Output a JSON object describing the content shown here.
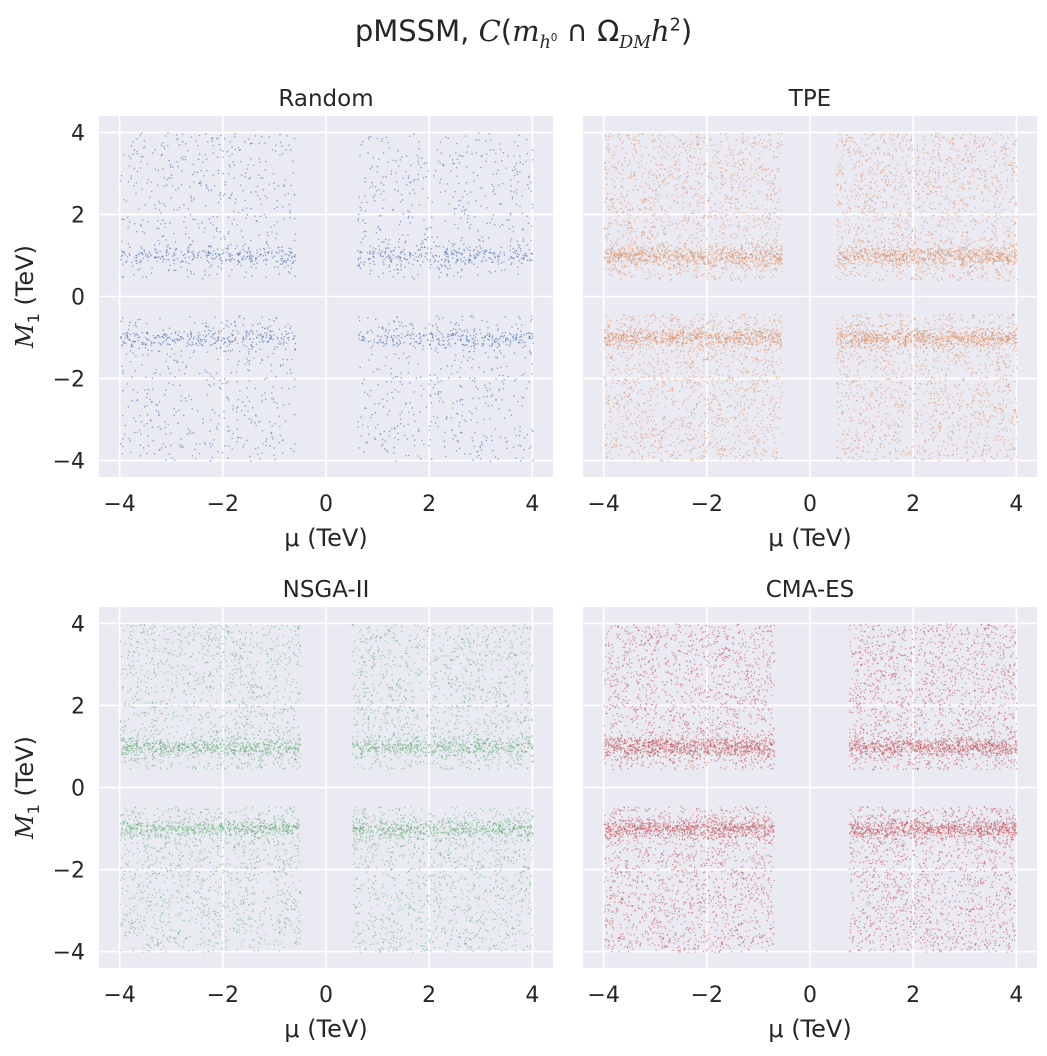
{
  "figure": {
    "suptitle_prefix": "pMSSM, ",
    "suptitle_math": {
      "C": "C",
      "open": "(",
      "m": "m",
      "m_sub": "h",
      "m_sub_sup": "0",
      "cap": " ∩ ",
      "omega": "Ω",
      "omega_sub": "DM",
      "h": "h",
      "h_sup": "2",
      "close": ")"
    }
  },
  "chart_data": [
    {
      "type": "scatter",
      "title": "Random",
      "xlabel": "μ (TeV)",
      "ylabel": "M1 (TeV)",
      "xlim": [
        -4.4,
        4.4
      ],
      "ylim": [
        -4.4,
        4.4
      ],
      "xticks": [
        -4,
        -2,
        0,
        2,
        4
      ],
      "yticks": [
        -4,
        -2,
        0,
        2,
        4
      ],
      "xtick_labels": [
        "−4",
        "−2",
        "0",
        "2",
        "4"
      ],
      "ytick_labels": [
        "−4",
        "−2",
        "0",
        "2",
        "4"
      ],
      "color": "#4c72b0",
      "grid": true,
      "regions": [
        {
          "x": [
            -4,
            -0.6
          ],
          "y": [
            0.45,
            4
          ],
          "density": 0.25,
          "band_y": 1.0
        },
        {
          "x": [
            0.6,
            4
          ],
          "y": [
            0.45,
            4
          ],
          "density": 0.25,
          "band_y": 1.0
        },
        {
          "x": [
            -4,
            -0.6
          ],
          "y": [
            -4,
            -0.45
          ],
          "density": 0.25,
          "band_y": -1.0
        },
        {
          "x": [
            0.6,
            4
          ],
          "y": [
            -4,
            -0.45
          ],
          "density": 0.25,
          "band_y": -1.0
        }
      ]
    },
    {
      "type": "scatter",
      "title": "TPE",
      "xlabel": "μ (TeV)",
      "ylabel": "",
      "xlim": [
        -4.4,
        4.4
      ],
      "ylim": [
        -4.4,
        4.4
      ],
      "xticks": [
        -4,
        -2,
        0,
        2,
        4
      ],
      "yticks": [
        -4,
        -2,
        0,
        2,
        4
      ],
      "xtick_labels": [
        "−4",
        "−2",
        "0",
        "2",
        "4"
      ],
      "ytick_labels": [],
      "color": "#dd8452",
      "grid": true,
      "regions": [
        {
          "x": [
            -4,
            -0.55
          ],
          "y": [
            0.4,
            4
          ],
          "density": 0.75,
          "band_y": 1.0
        },
        {
          "x": [
            0.5,
            4
          ],
          "y": [
            0.4,
            4
          ],
          "density": 0.75,
          "band_y": 1.0
        },
        {
          "x": [
            -4,
            -0.55
          ],
          "y": [
            -4,
            -0.4
          ],
          "density": 0.75,
          "band_y": -1.0
        },
        {
          "x": [
            0.5,
            4
          ],
          "y": [
            -4,
            -0.4
          ],
          "density": 0.75,
          "band_y": -1.0
        }
      ]
    },
    {
      "type": "scatter",
      "title": "NSGA-II",
      "xlabel": "μ (TeV)",
      "ylabel": "M1 (TeV)",
      "xlim": [
        -4.4,
        4.4
      ],
      "ylim": [
        -4.4,
        4.4
      ],
      "xticks": [
        -4,
        -2,
        0,
        2,
        4
      ],
      "yticks": [
        -4,
        -2,
        0,
        2,
        4
      ],
      "xtick_labels": [
        "−4",
        "−2",
        "0",
        "2",
        "4"
      ],
      "ytick_labels": [
        "−4",
        "−2",
        "0",
        "2",
        "4"
      ],
      "color": "#55a868",
      "grid": true,
      "regions": [
        {
          "x": [
            -4,
            -0.5
          ],
          "y": [
            0.45,
            4
          ],
          "density": 0.6,
          "band_y": 1.0
        },
        {
          "x": [
            0.5,
            4
          ],
          "y": [
            0.45,
            4
          ],
          "density": 0.6,
          "band_y": 1.0
        },
        {
          "x": [
            -4,
            -0.5
          ],
          "y": [
            -4,
            -0.45
          ],
          "density": 0.6,
          "band_y": -1.0
        },
        {
          "x": [
            0.5,
            4
          ],
          "y": [
            -4,
            -0.45
          ],
          "density": 0.6,
          "band_y": -1.0
        }
      ]
    },
    {
      "type": "scatter",
      "title": "CMA-ES",
      "xlabel": "μ (TeV)",
      "ylabel": "",
      "xlim": [
        -4.4,
        4.4
      ],
      "ylim": [
        -4.4,
        4.4
      ],
      "xticks": [
        -4,
        -2,
        0,
        2,
        4
      ],
      "yticks": [
        -4,
        -2,
        0,
        2,
        4
      ],
      "xtick_labels": [
        "−4",
        "−2",
        "0",
        "2",
        "4"
      ],
      "ytick_labels": [],
      "color": "#c44e52",
      "grid": true,
      "regions": [
        {
          "x": [
            -4,
            -0.7
          ],
          "y": [
            0.45,
            4
          ],
          "density": 0.85,
          "band_y": 1.0
        },
        {
          "x": [
            0.75,
            4
          ],
          "y": [
            0.45,
            4
          ],
          "density": 0.85,
          "band_y": 1.0
        },
        {
          "x": [
            -4,
            -0.7
          ],
          "y": [
            -4,
            -0.45
          ],
          "density": 0.85,
          "band_y": -1.0
        },
        {
          "x": [
            0.75,
            4
          ],
          "y": [
            -4,
            -0.45
          ],
          "density": 0.85,
          "band_y": -1.0
        }
      ]
    }
  ]
}
